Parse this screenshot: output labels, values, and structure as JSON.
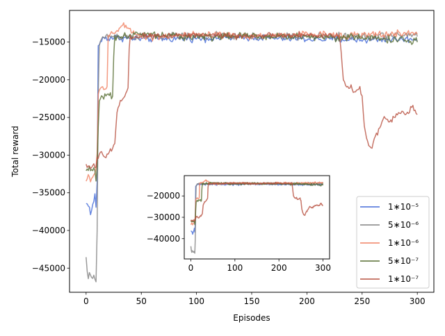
{
  "chart_data": [
    {
      "type": "line",
      "role": "main",
      "title": "",
      "xlabel": "Episodes",
      "ylabel": "Total reward",
      "xlim": [
        -15,
        315
      ],
      "ylim": [
        -48200,
        -10800
      ],
      "xticks": [
        0,
        50,
        100,
        150,
        200,
        250,
        300
      ],
      "yticks": [
        -45000,
        -40000,
        -35000,
        -30000,
        -25000,
        -20000,
        -15000
      ],
      "xtick_labels": [
        "0",
        "50",
        "100",
        "150",
        "200",
        "250",
        "300"
      ],
      "ytick_labels": [
        "−45000",
        "−40000",
        "−35000",
        "−30000",
        "−25000",
        "−20000",
        "−15000"
      ],
      "grid": false,
      "legend_position": "lower-right",
      "series": [
        {
          "name": "1∗10⁻⁵",
          "color": "#4169d8",
          "keypoints": [
            [
              0,
              -36500
            ],
            [
              2,
              -36400
            ],
            [
              4,
              -37800
            ],
            [
              6,
              -36800
            ],
            [
              8,
              -35300
            ],
            [
              9,
              -37100
            ],
            [
              10,
              -33300
            ],
            [
              11,
              -15400
            ],
            [
              12,
              -15500
            ],
            [
              13,
              -14900
            ],
            [
              15,
              -14600
            ],
            [
              18,
              -14400
            ],
            [
              20,
              -14500
            ],
            [
              25,
              -14400
            ],
            [
              50,
              -14600
            ],
            [
              100,
              -14500
            ],
            [
              150,
              -14400
            ],
            [
              200,
              -14600
            ],
            [
              250,
              -14700
            ],
            [
              300,
              -14600
            ]
          ],
          "noise": 340
        },
        {
          "name": "5∗10⁻⁶",
          "color": "#808080",
          "keypoints": [
            [
              0,
              -43600
            ],
            [
              1,
              -45800
            ],
            [
              2,
              -46100
            ],
            [
              4,
              -46000
            ],
            [
              6,
              -46300
            ],
            [
              8,
              -46100
            ],
            [
              9,
              -46400
            ],
            [
              10,
              -40200
            ],
            [
              11,
              -22000
            ],
            [
              12,
              -15500
            ],
            [
              13,
              -14800
            ],
            [
              15,
              -14500
            ],
            [
              20,
              -14200
            ],
            [
              50,
              -14300
            ],
            [
              100,
              -14200
            ],
            [
              150,
              -14300
            ],
            [
              200,
              -14200
            ],
            [
              250,
              -14300
            ],
            [
              300,
              -14000
            ]
          ],
          "noise": 380
        },
        {
          "name": "1∗10⁻⁶",
          "color": "#f08060",
          "keypoints": [
            [
              0,
              -33500
            ],
            [
              2,
              -32400
            ],
            [
              4,
              -33800
            ],
            [
              6,
              -33000
            ],
            [
              8,
              -32500
            ],
            [
              10,
              -29800
            ],
            [
              11,
              -22000
            ],
            [
              12,
              -21300
            ],
            [
              14,
              -20800
            ],
            [
              16,
              -21300
            ],
            [
              18,
              -21000
            ],
            [
              19,
              -20900
            ],
            [
              20,
              -14600
            ],
            [
              22,
              -14100
            ],
            [
              25,
              -13800
            ],
            [
              30,
              -13200
            ],
            [
              35,
              -12900
            ],
            [
              40,
              -13300
            ],
            [
              45,
              -13700
            ],
            [
              50,
              -14300
            ],
            [
              100,
              -14100
            ],
            [
              150,
              -14200
            ],
            [
              200,
              -14000
            ],
            [
              250,
              -14100
            ],
            [
              300,
              -13800
            ]
          ],
          "noise": 360
        },
        {
          "name": "5∗10⁻⁷",
          "color": "#556b2f",
          "keypoints": [
            [
              0,
              -32100
            ],
            [
              3,
              -31900
            ],
            [
              6,
              -32300
            ],
            [
              8,
              -32100
            ],
            [
              9,
              -33300
            ],
            [
              10,
              -31500
            ],
            [
              11,
              -26000
            ],
            [
              12,
              -22600
            ],
            [
              14,
              -22200
            ],
            [
              16,
              -22500
            ],
            [
              18,
              -22000
            ],
            [
              22,
              -22300
            ],
            [
              24,
              -22400
            ],
            [
              25,
              -17000
            ],
            [
              26,
              -14600
            ],
            [
              30,
              -14200
            ],
            [
              50,
              -14000
            ],
            [
              100,
              -14300
            ],
            [
              150,
              -14200
            ],
            [
              200,
              -14300
            ],
            [
              250,
              -14400
            ],
            [
              300,
              -14900
            ]
          ],
          "noise": 380
        },
        {
          "name": "1∗10⁻⁷",
          "color": "#b85040",
          "keypoints": [
            [
              0,
              -31200
            ],
            [
              3,
              -31600
            ],
            [
              6,
              -31300
            ],
            [
              9,
              -31800
            ],
            [
              10,
              -30600
            ],
            [
              12,
              -30000
            ],
            [
              14,
              -29800
            ],
            [
              18,
              -30300
            ],
            [
              22,
              -29500
            ],
            [
              26,
              -28500
            ],
            [
              28,
              -24200
            ],
            [
              30,
              -23300
            ],
            [
              34,
              -22400
            ],
            [
              37,
              -21800
            ],
            [
              38,
              -21300
            ],
            [
              39,
              -16000
            ],
            [
              40,
              -14600
            ],
            [
              45,
              -14300
            ],
            [
              50,
              -14200
            ],
            [
              100,
              -14000
            ],
            [
              150,
              -14200
            ],
            [
              200,
              -14100
            ],
            [
              229,
              -14100
            ],
            [
              231,
              -15800
            ],
            [
              233,
              -19800
            ],
            [
              236,
              -21300
            ],
            [
              240,
              -20800
            ],
            [
              244,
              -21800
            ],
            [
              248,
              -20600
            ],
            [
              250,
              -22400
            ],
            [
              252,
              -26300
            ],
            [
              254,
              -27700
            ],
            [
              256,
              -28600
            ],
            [
              258,
              -29000
            ],
            [
              260,
              -28300
            ],
            [
              263,
              -27400
            ],
            [
              266,
              -26400
            ],
            [
              270,
              -25000
            ],
            [
              275,
              -25700
            ],
            [
              280,
              -24800
            ],
            [
              285,
              -24300
            ],
            [
              290,
              -24800
            ],
            [
              295,
              -23600
            ],
            [
              298,
              -23800
            ],
            [
              300,
              -24200
            ]
          ],
          "noise": 300
        }
      ]
    },
    {
      "type": "line",
      "role": "inset",
      "xlim": [
        -15,
        315
      ],
      "ylim": [
        -49500,
        -10500
      ],
      "xticks": [
        0,
        100,
        200,
        300
      ],
      "yticks": [
        -40000,
        -30000,
        -20000
      ],
      "xtick_labels": [
        "0",
        "100",
        "200",
        "300"
      ],
      "ytick_labels": [
        "−40000",
        "−30000",
        "−20000"
      ],
      "grid": false,
      "series_ref": "main"
    }
  ]
}
